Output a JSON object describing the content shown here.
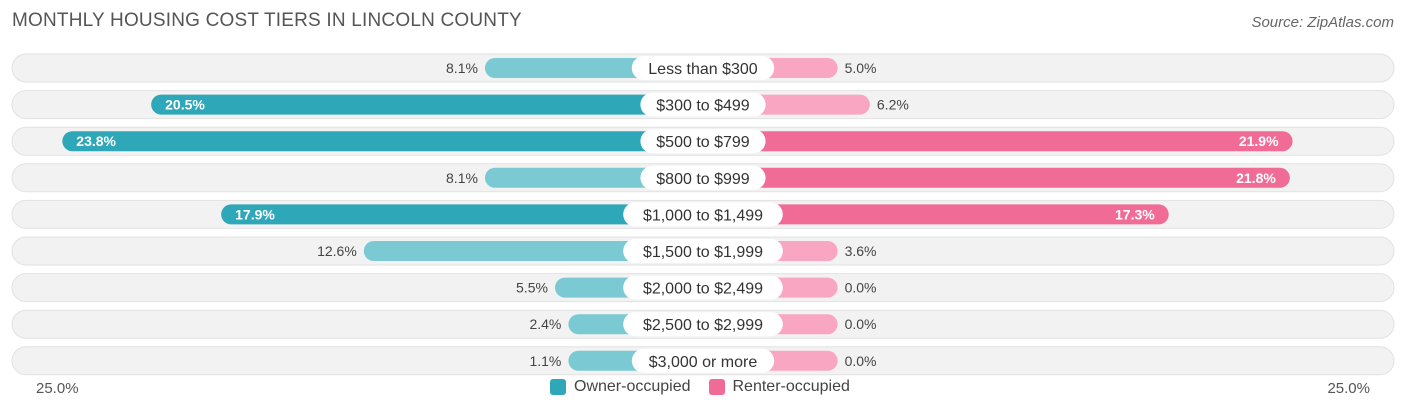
{
  "chart_data": {
    "type": "bar",
    "orientation": "horizontal-diverging",
    "title": "MONTHLY HOUSING COST TIERS IN LINCOLN COUNTY",
    "source": "Source: ZipAtlas.com",
    "categories": [
      "Less than $300",
      "$300 to $499",
      "$500 to $799",
      "$800 to $999",
      "$1,000 to $1,499",
      "$1,500 to $1,999",
      "$2,000 to $2,499",
      "$2,500 to $2,999",
      "$3,000 or more"
    ],
    "series": [
      {
        "name": "Owner-occupied",
        "values": [
          8.1,
          20.5,
          23.8,
          8.1,
          17.9,
          12.6,
          5.5,
          2.4,
          1.1
        ],
        "labels": [
          "8.1%",
          "20.5%",
          "23.8%",
          "8.1%",
          "17.9%",
          "12.6%",
          "5.5%",
          "2.4%",
          "1.1%"
        ]
      },
      {
        "name": "Renter-occupied",
        "values": [
          5.0,
          6.2,
          21.9,
          21.8,
          17.3,
          3.6,
          0.0,
          0.0,
          0.0
        ],
        "labels": [
          "5.0%",
          "6.2%",
          "21.9%",
          "21.8%",
          "17.3%",
          "3.6%",
          "0.0%",
          "0.0%",
          "0.0%"
        ]
      }
    ],
    "xlim": [
      -25,
      25
    ],
    "axis_labels": {
      "left": "25.0%",
      "right": "25.0%"
    },
    "legend": {
      "owner": "Owner-occupied",
      "renter": "Renter-occupied",
      "placement": "bottom-center"
    },
    "colors": {
      "owner_dark": "#2ea7b8",
      "owner_light": "#7ac9d3",
      "renter_dark": "#f06b96",
      "renter_light": "#f8a6c2",
      "row_bg": "#f2f2f2"
    }
  }
}
